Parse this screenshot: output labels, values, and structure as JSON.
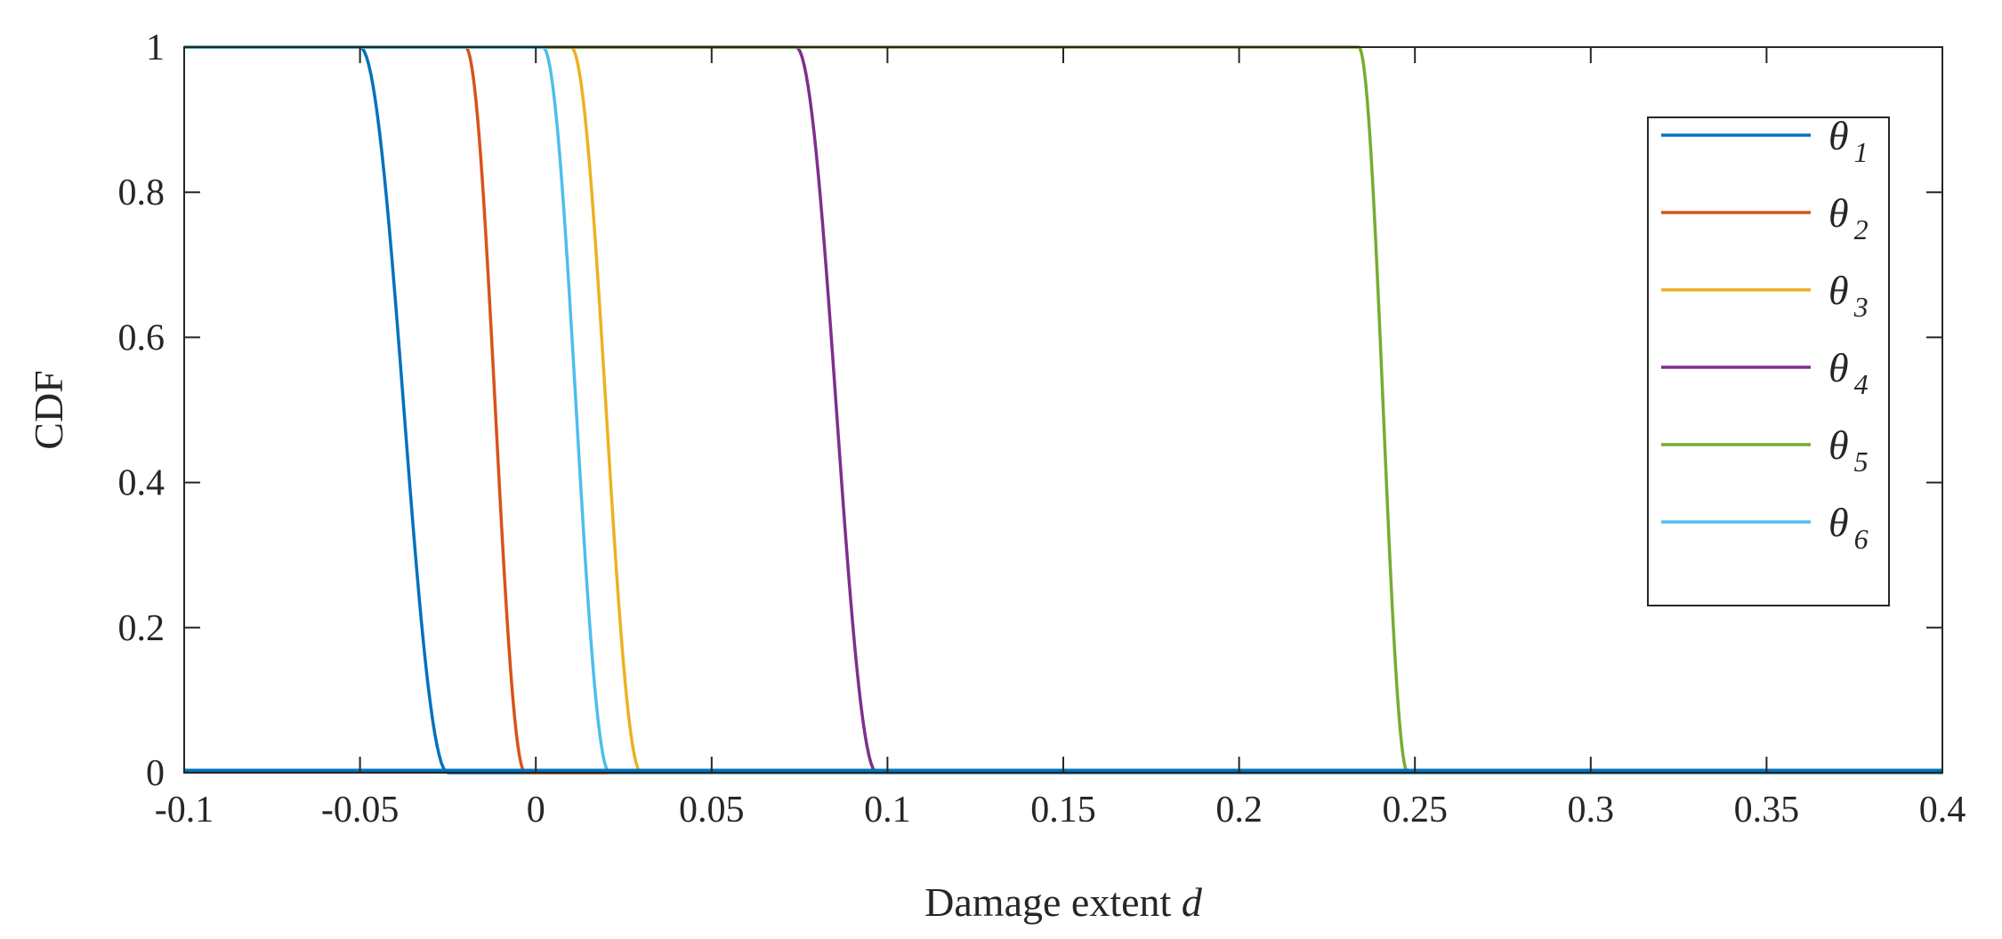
{
  "chart_data": {
    "type": "line",
    "title": "",
    "xlabel": "Damage extent",
    "xlabel_var": "d",
    "ylabel": "CDF",
    "xlim": [
      -0.1,
      0.4
    ],
    "ylim": [
      0,
      1
    ],
    "xticks": [
      -0.1,
      -0.05,
      0,
      0.05,
      0.1,
      0.15,
      0.2,
      0.25,
      0.3,
      0.35,
      0.4
    ],
    "xtick_labels": [
      "-0.1",
      "-0.05",
      "0",
      "0.05",
      "0.1",
      "0.15",
      "0.2",
      "0.25",
      "0.3",
      "0.35",
      "0.4"
    ],
    "yticks": [
      0,
      0.2,
      0.4,
      0.6,
      0.8,
      1
    ],
    "ytick_labels": [
      "0",
      "0.2",
      "0.4",
      "0.6",
      "0.8",
      "1"
    ],
    "grid": false,
    "legend_position": "top-right",
    "series": [
      {
        "name": "θ",
        "sub": "1",
        "color": "#0072BD",
        "start": -0.05,
        "end": -0.025
      },
      {
        "name": "θ",
        "sub": "2",
        "color": "#D95319",
        "start": -0.02,
        "end": -0.003
      },
      {
        "name": "θ",
        "sub": "3",
        "color": "#EDB120",
        "start": 0.01,
        "end": 0.03
      },
      {
        "name": "θ",
        "sub": "4",
        "color": "#7E2F8E",
        "start": 0.074,
        "end": 0.097
      },
      {
        "name": "θ",
        "sub": "5",
        "color": "#77AC30",
        "start": 0.234,
        "end": 0.248
      },
      {
        "name": "θ",
        "sub": "6",
        "color": "#4DBEEE",
        "start": 0.002,
        "end": 0.021
      }
    ]
  }
}
